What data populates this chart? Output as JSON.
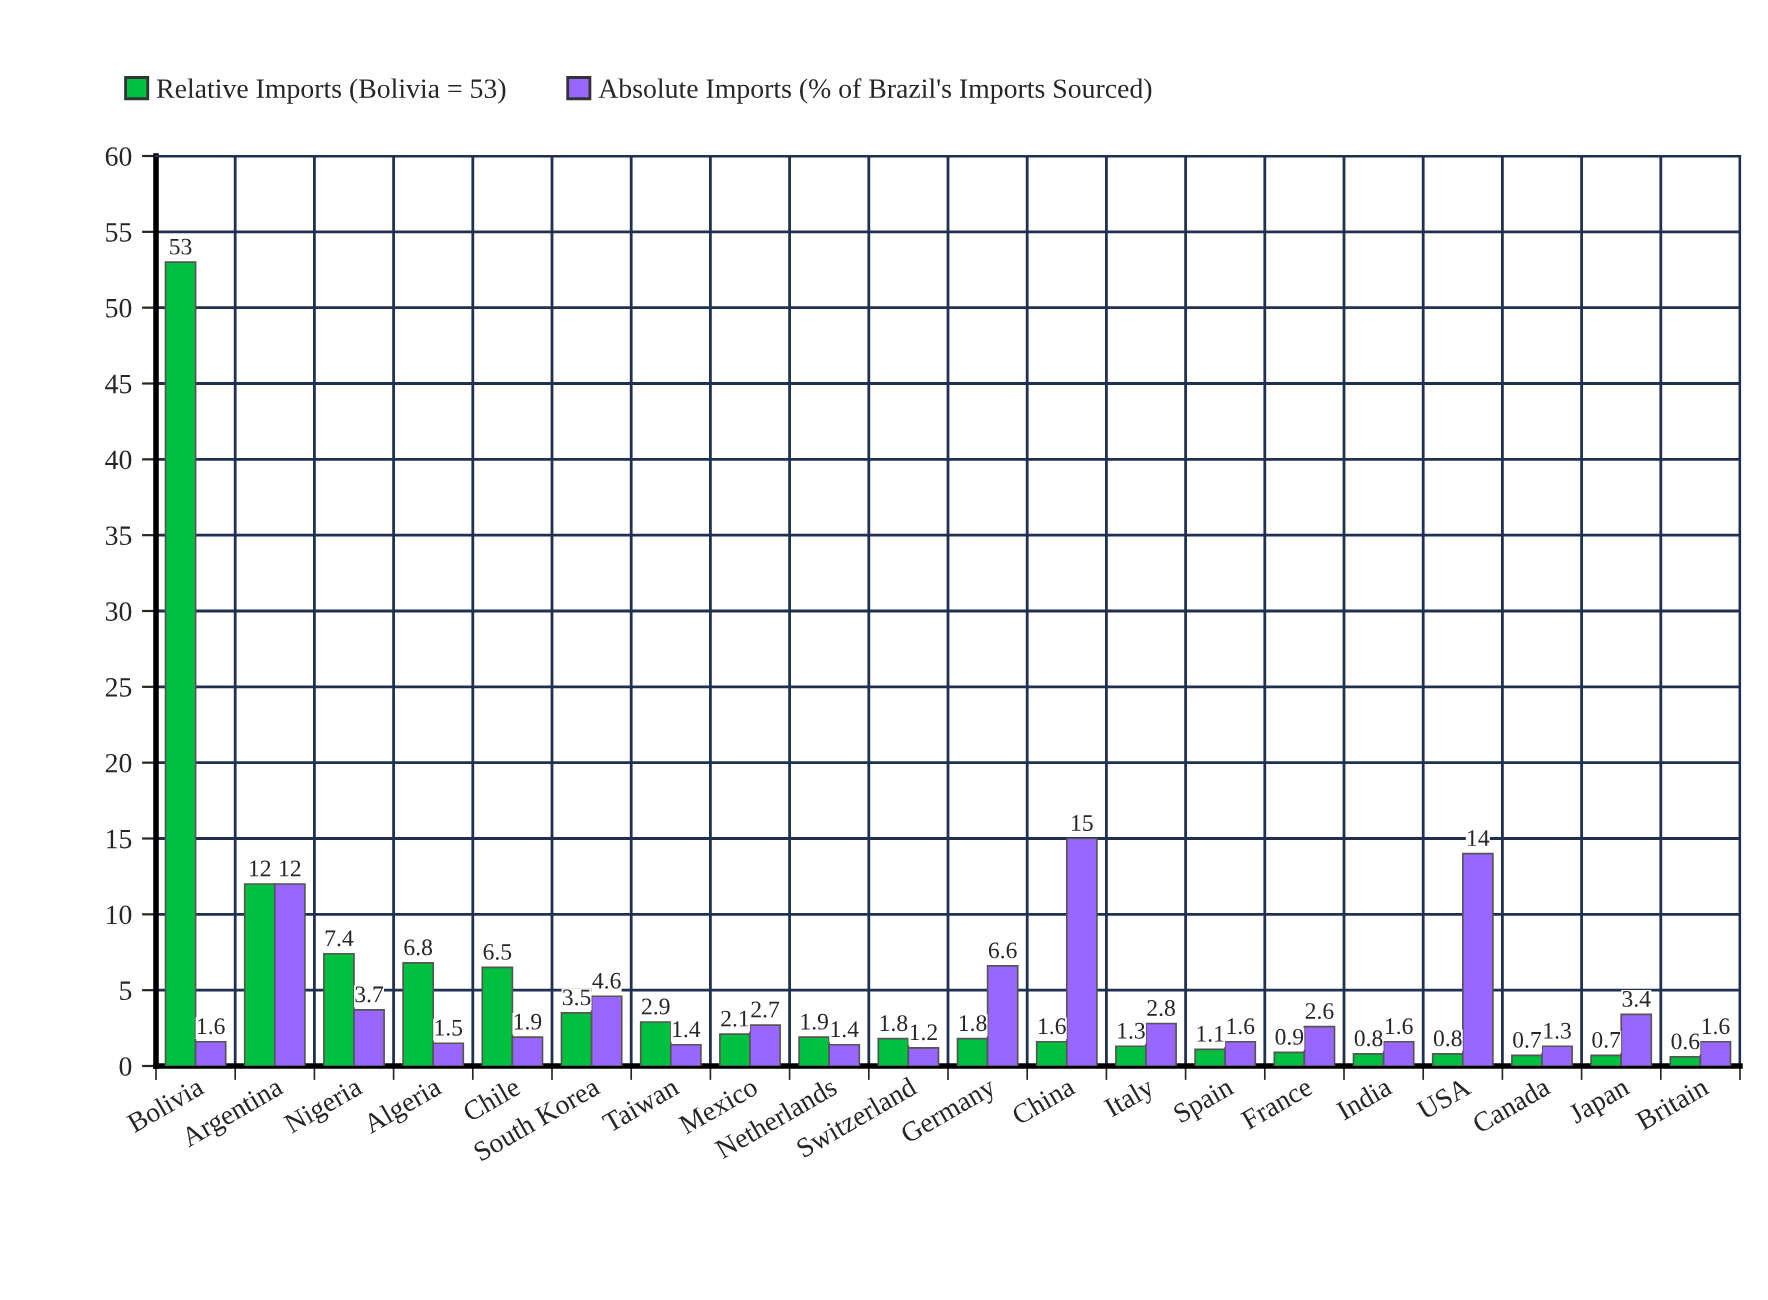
{
  "chart_data": {
    "type": "bar",
    "categories": [
      "Bolivia",
      "Argentina",
      "Nigeria",
      "Algeria",
      "Chile",
      "South Korea",
      "Taiwan",
      "Mexico",
      "Netherlands",
      "Switzerland",
      "Germany",
      "China",
      "Italy",
      "Spain",
      "France",
      "India",
      "USA",
      "Canada",
      "Japan",
      "Britain"
    ],
    "series": [
      {
        "name": "Relative Imports (Bolivia = 53)",
        "color": "#00c040",
        "values": [
          53,
          12,
          7.4,
          6.8,
          6.5,
          3.5,
          2.9,
          2.1,
          1.9,
          1.8,
          1.8,
          1.6,
          1.3,
          1.1,
          0.9,
          0.8,
          0.8,
          0.7,
          0.7,
          0.6
        ]
      },
      {
        "name": "Absolute Imports (% of Brazil's Imports Sourced)",
        "color": "#9966ff",
        "values": [
          1.6,
          12,
          3.7,
          1.5,
          1.9,
          4.6,
          1.4,
          2.7,
          1.4,
          1.2,
          6.6,
          15,
          2.8,
          1.6,
          2.6,
          1.6,
          14,
          1.3,
          3.4,
          1.6
        ]
      }
    ],
    "ylim": [
      0,
      60
    ],
    "yticks": [
      0,
      5,
      10,
      15,
      20,
      25,
      30,
      35,
      40,
      45,
      50,
      55,
      60
    ],
    "grid": true,
    "legend": "top left",
    "data_labels": true
  }
}
